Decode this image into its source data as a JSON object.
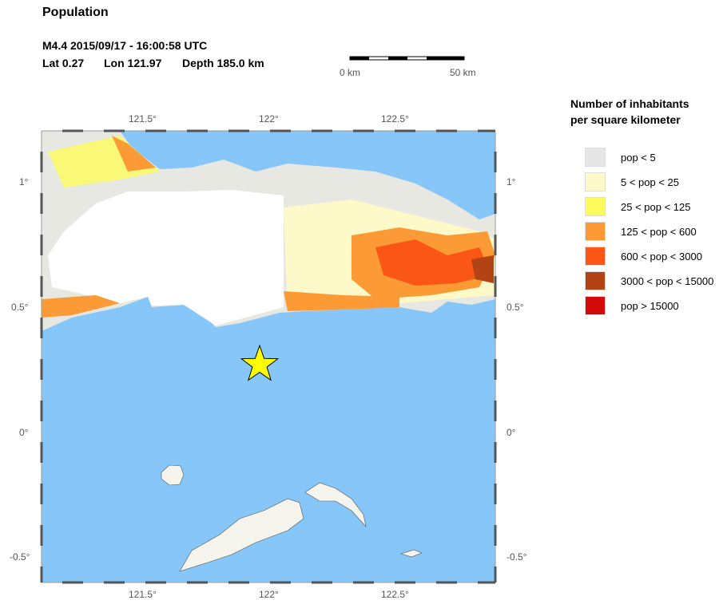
{
  "title": "Population",
  "event": {
    "line1": "M4.4  2015/09/17 - 16:00:58 UTC",
    "lat_label": "Lat  0.27",
    "lon_label": "Lon 121.97",
    "depth_label": "Depth 185.0 km",
    "lat": 0.27,
    "lon": 121.97
  },
  "scale_bar": {
    "start_label": "0 km",
    "end_label": "50 km"
  },
  "axes": {
    "lon_ticks": [
      {
        "label": "121.5°",
        "value": 121.5
      },
      {
        "label": "122°",
        "value": 122
      },
      {
        "label": "122.5°",
        "value": 122.5
      }
    ],
    "lat_ticks": [
      {
        "label": "1°",
        "value": 1
      },
      {
        "label": "0.5°",
        "value": 0.5
      },
      {
        "label": "0°",
        "value": 0
      },
      {
        "label": "-0.5°",
        "value": -0.5
      }
    ],
    "lon_range": [
      121.1,
      122.9
    ],
    "lat_range": [
      -0.6,
      1.2
    ]
  },
  "legend": {
    "title_line1": "Number of inhabitants",
    "title_line2": "per square kilometer",
    "items": [
      {
        "label": "pop < 5",
        "color": "#e6e6e6"
      },
      {
        "label": "5 < pop < 25",
        "color": "#fdf9c8"
      },
      {
        "label": "25 < pop < 125",
        "color": "#fdfb5c"
      },
      {
        "label": "125 < pop < 600",
        "color": "#fc9a35"
      },
      {
        "label": "600 < pop < 3000",
        "color": "#fc5616"
      },
      {
        "label": "3000 < pop < 15000",
        "color": "#b24314"
      },
      {
        "label": "pop > 15000",
        "color": "#d40a0a"
      }
    ]
  },
  "colors": {
    "ocean": "#86c6f8",
    "epicenter": "#ffff00"
  }
}
